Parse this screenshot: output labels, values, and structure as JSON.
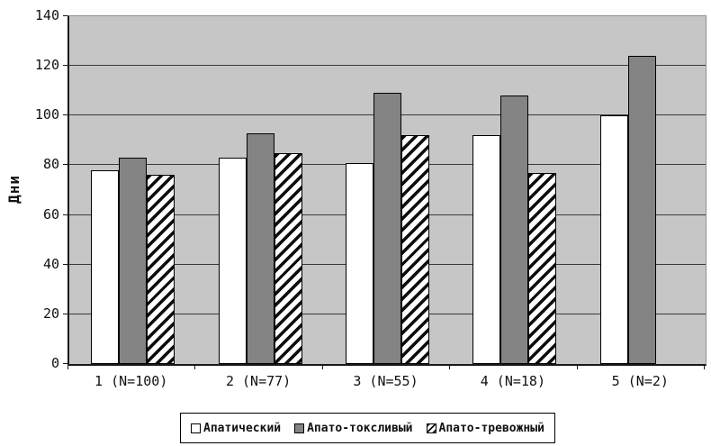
{
  "chart_data": {
    "type": "bar",
    "title": "",
    "xlabel": "",
    "ylabel": "Дни",
    "ylim": [
      0,
      140
    ],
    "yticks": [
      0,
      20,
      40,
      60,
      80,
      100,
      120,
      140
    ],
    "grid": true,
    "legend_position": "bottom",
    "categories": [
      "1 (N=100)",
      "2 (N=77)",
      "3 (N=55)",
      "4 (N=18)",
      "5 (N=2)"
    ],
    "series": [
      {
        "name": "Апатический",
        "style": "white",
        "values": [
          78,
          83,
          81,
          92,
          100
        ]
      },
      {
        "name": "Апато-токсливый",
        "style": "gray",
        "values": [
          83,
          93,
          109,
          108,
          124
        ]
      },
      {
        "name": "Апато-тревожный",
        "style": "hatch",
        "values": [
          76,
          85,
          92,
          77,
          null
        ]
      }
    ],
    "colors": {
      "plot_background": "#c6c6c6",
      "bar_white": "#ffffff",
      "bar_gray": "#848484",
      "bar_border": "#000000",
      "gridline": "#3a3a3a",
      "axis": "#1a1a1a"
    }
  }
}
